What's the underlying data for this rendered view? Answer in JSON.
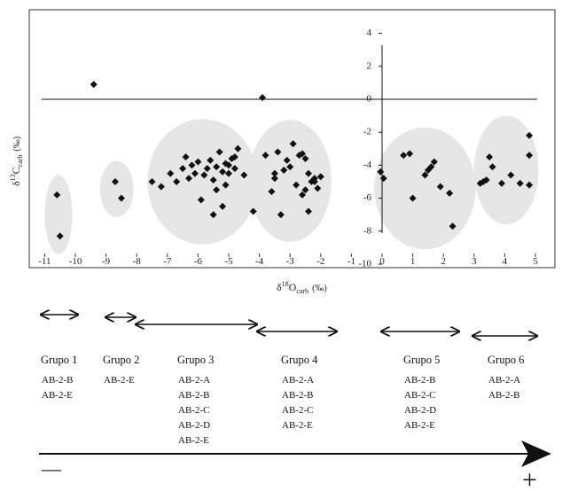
{
  "chart_data": {
    "type": "scatter",
    "xlabel": {
      "main": "δ",
      "sup": "18",
      "sym": "O",
      "sub": "carb",
      "unit": "(‰)"
    },
    "ylabel": {
      "main": "δ",
      "sup": "13",
      "sym": "C",
      "sub": "carb",
      "unit": "(‰)"
    },
    "xlim": [
      -11,
      5
    ],
    "ylim": [
      -10,
      4
    ],
    "x_ticks": [
      -11,
      -10,
      -9,
      -8,
      -7,
      -6,
      -5,
      -4,
      -3,
      -2,
      -1,
      0,
      1,
      2,
      3,
      4,
      5
    ],
    "y_ticks": [
      4,
      2,
      0,
      -2,
      -4,
      -6,
      -8,
      -10
    ],
    "grid": false,
    "points": [
      [
        -10.6,
        -5.8
      ],
      [
        -10.5,
        -8.3
      ],
      [
        -9.4,
        0.9
      ],
      [
        -3.9,
        0.1
      ],
      [
        -8.7,
        -5.0
      ],
      [
        -8.5,
        -6.0
      ],
      [
        -7.5,
        -5.0
      ],
      [
        -7.2,
        -5.3
      ],
      [
        -6.9,
        -4.5
      ],
      [
        -6.7,
        -5.0
      ],
      [
        -6.5,
        -4.2
      ],
      [
        -6.4,
        -3.5
      ],
      [
        -6.3,
        -4.8
      ],
      [
        -6.2,
        -4.0
      ],
      [
        -6.1,
        -4.5
      ],
      [
        -6.0,
        -3.8
      ],
      [
        -5.9,
        -6.1
      ],
      [
        -5.8,
        -4.6
      ],
      [
        -5.7,
        -4.2
      ],
      [
        -5.6,
        -3.7
      ],
      [
        -5.5,
        -4.9
      ],
      [
        -5.4,
        -5.5
      ],
      [
        -5.3,
        -3.2
      ],
      [
        -5.2,
        -4.4
      ],
      [
        -5.1,
        -5.2
      ],
      [
        -5.0,
        -4.0
      ],
      [
        -4.9,
        -3.6
      ],
      [
        -4.8,
        -4.2
      ],
      [
        -4.7,
        -3.0
      ],
      [
        -5.2,
        -6.5
      ],
      [
        -5.5,
        -7.0
      ],
      [
        -5.1,
        -3.9
      ],
      [
        -5.0,
        -4.5
      ],
      [
        -4.8,
        -3.5
      ],
      [
        -4.5,
        -4.6
      ],
      [
        -4.2,
        -6.8
      ],
      [
        -5.4,
        -4.1
      ],
      [
        -3.8,
        -3.4
      ],
      [
        -3.6,
        -5.6
      ],
      [
        -3.5,
        -4.8
      ],
      [
        -3.4,
        -3.2
      ],
      [
        -3.3,
        -7.0
      ],
      [
        -3.2,
        -4.3
      ],
      [
        -3.1,
        -3.7
      ],
      [
        -3.0,
        -4.1
      ],
      [
        -2.9,
        -2.7
      ],
      [
        -2.8,
        -5.2
      ],
      [
        -2.7,
        -3.4
      ],
      [
        -2.6,
        -5.8
      ],
      [
        -2.5,
        -3.6
      ],
      [
        -2.4,
        -4.5
      ],
      [
        -2.3,
        -5.0
      ],
      [
        -2.2,
        -4.8
      ],
      [
        -2.1,
        -5.4
      ],
      [
        -2.0,
        -4.7
      ],
      [
        -2.5,
        -5.5
      ],
      [
        -2.4,
        -6.8
      ],
      [
        -3.5,
        -4.5
      ],
      [
        -2.6,
        -3.3
      ],
      [
        -2.2,
        -5.0
      ],
      [
        -0.05,
        -4.4
      ],
      [
        0.05,
        -4.8
      ],
      [
        0.7,
        -3.4
      ],
      [
        0.9,
        -3.3
      ],
      [
        1.0,
        -6.0
      ],
      [
        1.4,
        -4.6
      ],
      [
        1.5,
        -4.3
      ],
      [
        1.6,
        -4.1
      ],
      [
        1.7,
        -3.8
      ],
      [
        1.9,
        -5.3
      ],
      [
        2.2,
        -5.7
      ],
      [
        2.3,
        -7.7
      ],
      [
        3.2,
        -5.1
      ],
      [
        3.4,
        -4.9
      ],
      [
        3.5,
        -3.5
      ],
      [
        3.6,
        -4.1
      ],
      [
        3.9,
        -5.1
      ],
      [
        4.2,
        -4.6
      ],
      [
        4.5,
        -5.1
      ],
      [
        4.8,
        -5.2
      ],
      [
        4.8,
        -2.2
      ],
      [
        4.8,
        -3.4
      ],
      [
        3.3,
        -5.0
      ]
    ],
    "clusters": [
      {
        "cx": -10.55,
        "cy": -7.0,
        "rx": 0.45,
        "ry": 2.4
      },
      {
        "cx": -8.65,
        "cy": -5.45,
        "rx": 0.55,
        "ry": 1.7
      },
      {
        "cx": -5.85,
        "cy": -5.0,
        "rx": 1.8,
        "ry": 3.8
      },
      {
        "cx": -3.0,
        "cy": -4.95,
        "rx": 1.35,
        "ry": 3.7
      },
      {
        "cx": 1.4,
        "cy": -5.4,
        "rx": 1.65,
        "ry": 3.7
      },
      {
        "cx": 4.05,
        "cy": -4.3,
        "rx": 1.05,
        "ry": 3.3
      }
    ]
  },
  "groups": [
    {
      "title": "Grupo 1",
      "samples": [
        "AB-2-B",
        "AB-2-E"
      ]
    },
    {
      "title": "Grupo 2",
      "samples": [
        "AB-2-E"
      ]
    },
    {
      "title": "Grupo 3",
      "samples": [
        "AB-2-A",
        "AB-2-B",
        "AB-2-C",
        "AB-2-D",
        "AB-2-E"
      ]
    },
    {
      "title": "Grupo 4",
      "samples": [
        "AB-2-A",
        "AB-2-B",
        "AB-2-C",
        "AB-2-E"
      ]
    },
    {
      "title": "Grupo 5",
      "samples": [
        "AB-2-B",
        "AB-2-C",
        "AB-2-D",
        "AB-2-E"
      ]
    },
    {
      "title": "Grupo 6",
      "samples": [
        "AB-2-A",
        "AB-2-B"
      ]
    }
  ],
  "scale": {
    "minus_label": "—",
    "plus_label": "+"
  }
}
